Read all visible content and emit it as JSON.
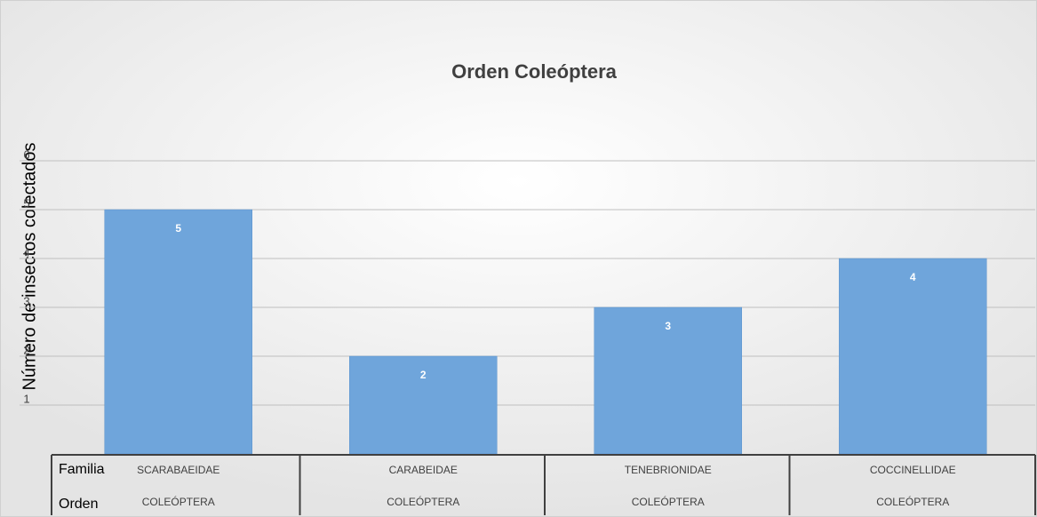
{
  "chart_data": {
    "type": "bar",
    "title": "Orden Coleóptera",
    "y_axis_label": "Número de insectos colectados",
    "category_level_names": [
      "Familia",
      "Orden"
    ],
    "categories": [
      "SCARABAEIDAE",
      "CARABEIDAE",
      "TENEBRIONIDAE",
      "COCCINELLIDAE"
    ],
    "categories_level2": [
      "COLEÓPTERA",
      "COLEÓPTERA",
      "COLEÓPTERA",
      "COLEÓPTERA"
    ],
    "values": [
      5,
      2,
      3,
      4
    ],
    "color": "#6fa5db",
    "ylim": [
      0,
      6
    ],
    "yticks": [
      1,
      2,
      3,
      4,
      5,
      6
    ],
    "grid": true,
    "data_labels": true
  }
}
